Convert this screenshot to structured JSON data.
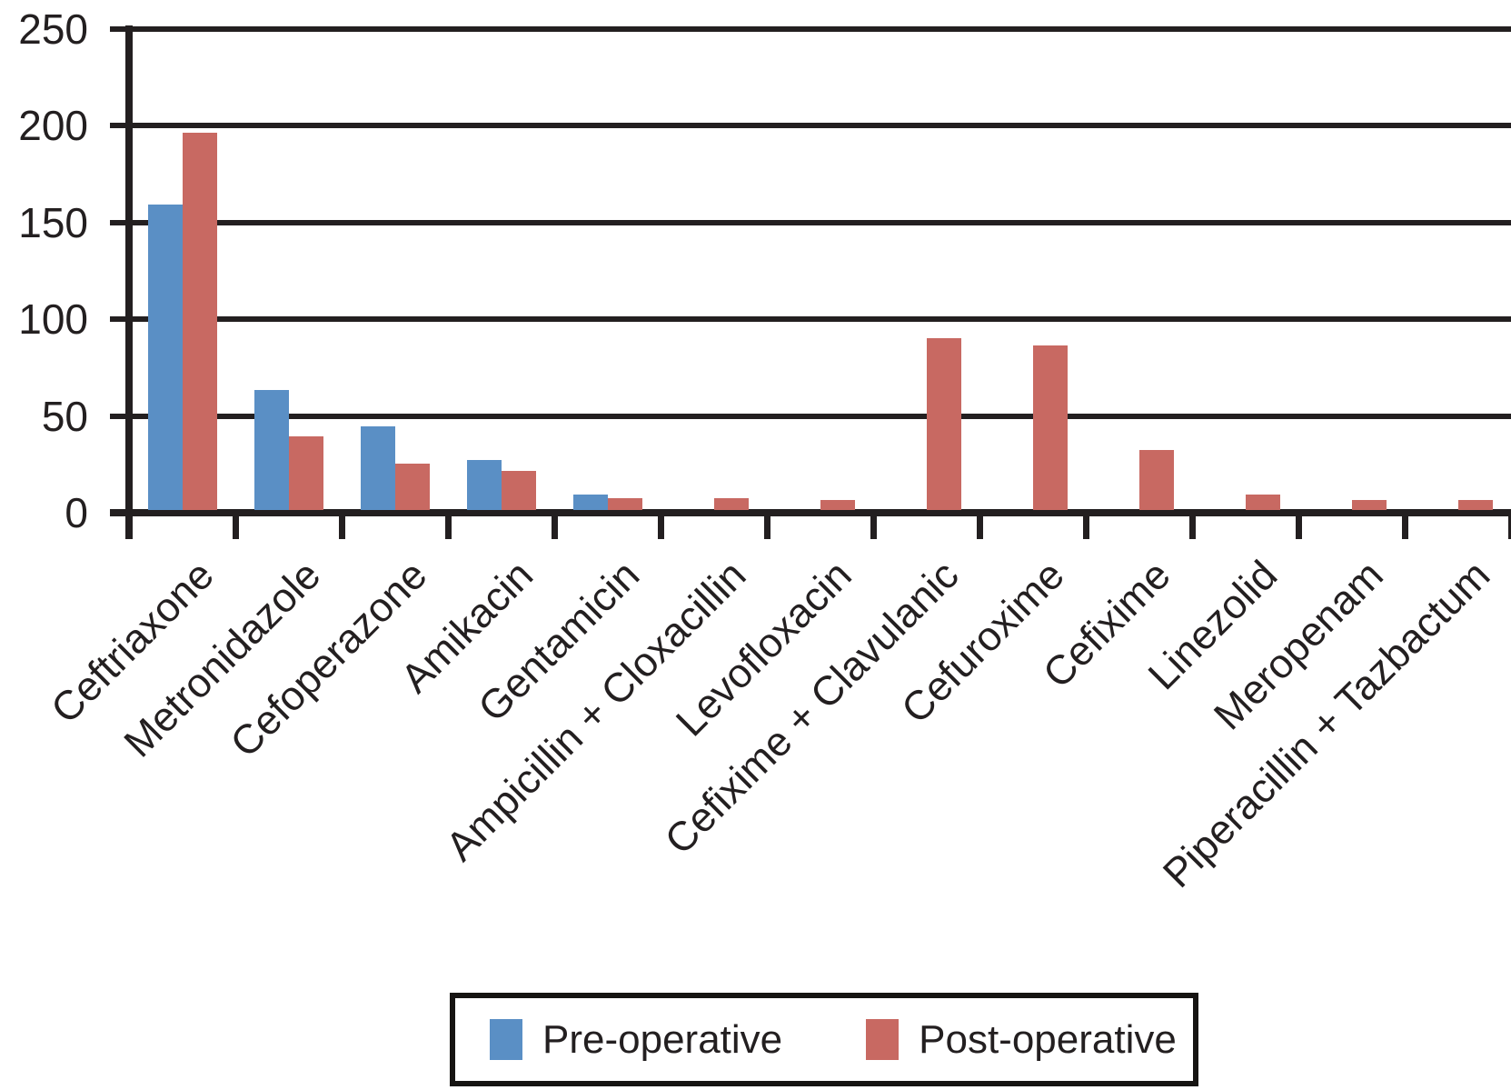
{
  "chart_data": {
    "type": "bar",
    "title": "",
    "xlabel": "",
    "ylabel": "",
    "categories": [
      "Ceftriaxone",
      "Metronidazole",
      "Cefoperazone",
      "Amikacin",
      "Gentamicin",
      "Ampicillin + Cloxacillin",
      "Levofloxacin",
      "Cefixime + Clavulanic",
      "Cefuroxime",
      "Cefixime",
      "Linezolid",
      "Meropenam",
      "Piperacillin + Tazbactum"
    ],
    "series": [
      {
        "name": "Pre-operative",
        "color": "#5a8fc5",
        "values": [
          158,
          62,
          43,
          26,
          8,
          0,
          0,
          0,
          0,
          0,
          0,
          0,
          0
        ]
      },
      {
        "name": "Post-operative",
        "color": "#c86962",
        "values": [
          195,
          38,
          24,
          20,
          6,
          6,
          5,
          89,
          85,
          31,
          8,
          5,
          5
        ]
      }
    ],
    "ylim": [
      0,
      250
    ],
    "yticks": [
      0,
      50,
      100,
      150,
      200,
      250
    ],
    "grid": "horizontal",
    "legend_position": "bottom",
    "axis_color": "#231f20"
  }
}
